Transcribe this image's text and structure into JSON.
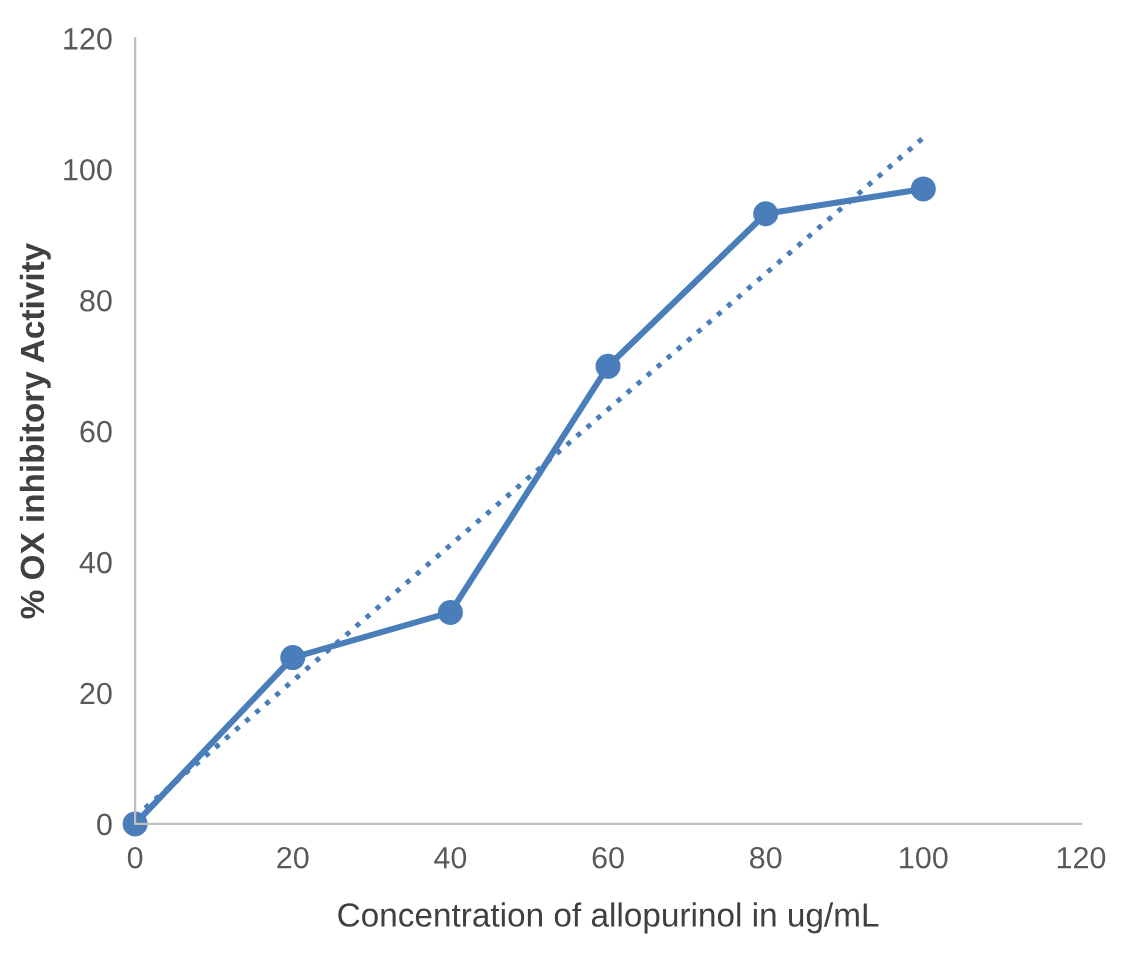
{
  "chart_data": {
    "type": "line",
    "xlabel": "Concentration of allopurinol in ug/mL",
    "ylabel": "% OX inhibitory Activity",
    "x": [
      0,
      20,
      40,
      60,
      80,
      100
    ],
    "series": [
      {
        "color": "#4a7ebb",
        "values": [
          0,
          25.4,
          32.3,
          69.9,
          93.2,
          97.0
        ],
        "marker": "circle",
        "line_style": "solid"
      },
      {
        "color": "#4a7ebb",
        "x": [
          0,
          100
        ],
        "values": [
          1.1,
          104.8
        ],
        "marker": "none",
        "line_style": "dotted"
      }
    ],
    "xlim": [
      0,
      120
    ],
    "xticks": [
      0,
      20,
      40,
      60,
      80,
      100,
      120
    ],
    "ylim": [
      0,
      120
    ],
    "yticks": [
      0,
      20,
      40,
      60,
      80,
      100,
      120
    ],
    "grid": false,
    "legend": false
  }
}
